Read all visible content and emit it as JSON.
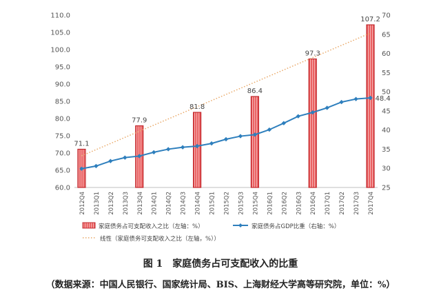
{
  "chart_data": {
    "type": "bar+line",
    "categories": [
      "2012Q4",
      "2013Q1",
      "2013Q2",
      "2013Q3",
      "2013Q4",
      "2014Q1",
      "2014Q2",
      "2014Q3",
      "2014Q4",
      "2015Q1",
      "2015Q2",
      "2015Q3",
      "2015Q4",
      "2016Q1",
      "2016Q2",
      "2016Q3",
      "2016Q4",
      "2017Q1",
      "2017Q2",
      "2017Q3",
      "2017Q4"
    ],
    "bar_series": {
      "name": "家庭债务占可支配收入之比（左轴：%）",
      "axis": "left",
      "values": [
        71.1,
        null,
        null,
        null,
        77.9,
        null,
        null,
        null,
        81.8,
        null,
        null,
        null,
        86.4,
        null,
        null,
        null,
        97.3,
        null,
        null,
        null,
        107.2
      ],
      "labels": [
        "71.1",
        "",
        "",
        "",
        "77.9",
        "",
        "",
        "",
        "81.8",
        "",
        "",
        "",
        "86.4",
        "",
        "",
        "",
        "97.3",
        "",
        "",
        "",
        "107.2"
      ]
    },
    "line_series": {
      "name": "家庭债务占GDP比重（右轴：%）",
      "axis": "right",
      "values": [
        29.9,
        30.6,
        31.9,
        32.8,
        33.2,
        34.2,
        35.0,
        35.5,
        35.8,
        36.5,
        37.6,
        38.4,
        38.8,
        40.1,
        41.8,
        43.6,
        44.6,
        45.8,
        47.3,
        48.1,
        48.4
      ],
      "end_label": "48.4"
    },
    "trend_series": {
      "name": "线性（家庭债务可支配收入之比（左轴，%））",
      "from": [
        0,
        69.2
      ],
      "to": [
        20,
        104.8
      ]
    },
    "left_axis": {
      "min": 60,
      "max": 110,
      "ticks": [
        "60.0",
        "65.0",
        "70.0",
        "75.0",
        "80.0",
        "85.0",
        "90.0",
        "95.0",
        "100.0",
        "105.0",
        "110.0"
      ]
    },
    "right_axis": {
      "min": 25,
      "max": 70,
      "ticks": [
        "25",
        "30",
        "35",
        "40",
        "45",
        "50",
        "55",
        "60",
        "65",
        "70"
      ]
    },
    "legend_placement": "bottom",
    "colors": {
      "bar_fill": "#e44a4a",
      "bar_hatch": "#f5b3b3",
      "bar_stroke": "#c0282d",
      "line": "#2e7fbd",
      "trend": "#e9a867",
      "axis_text": "#555555"
    }
  },
  "caption": {
    "title": "图 1　家庭债务占可支配收入的比重",
    "source": "（数据来源：中国人民银行、国家统计局、BIS、上海财经大学高等研究院，单位：%）"
  }
}
